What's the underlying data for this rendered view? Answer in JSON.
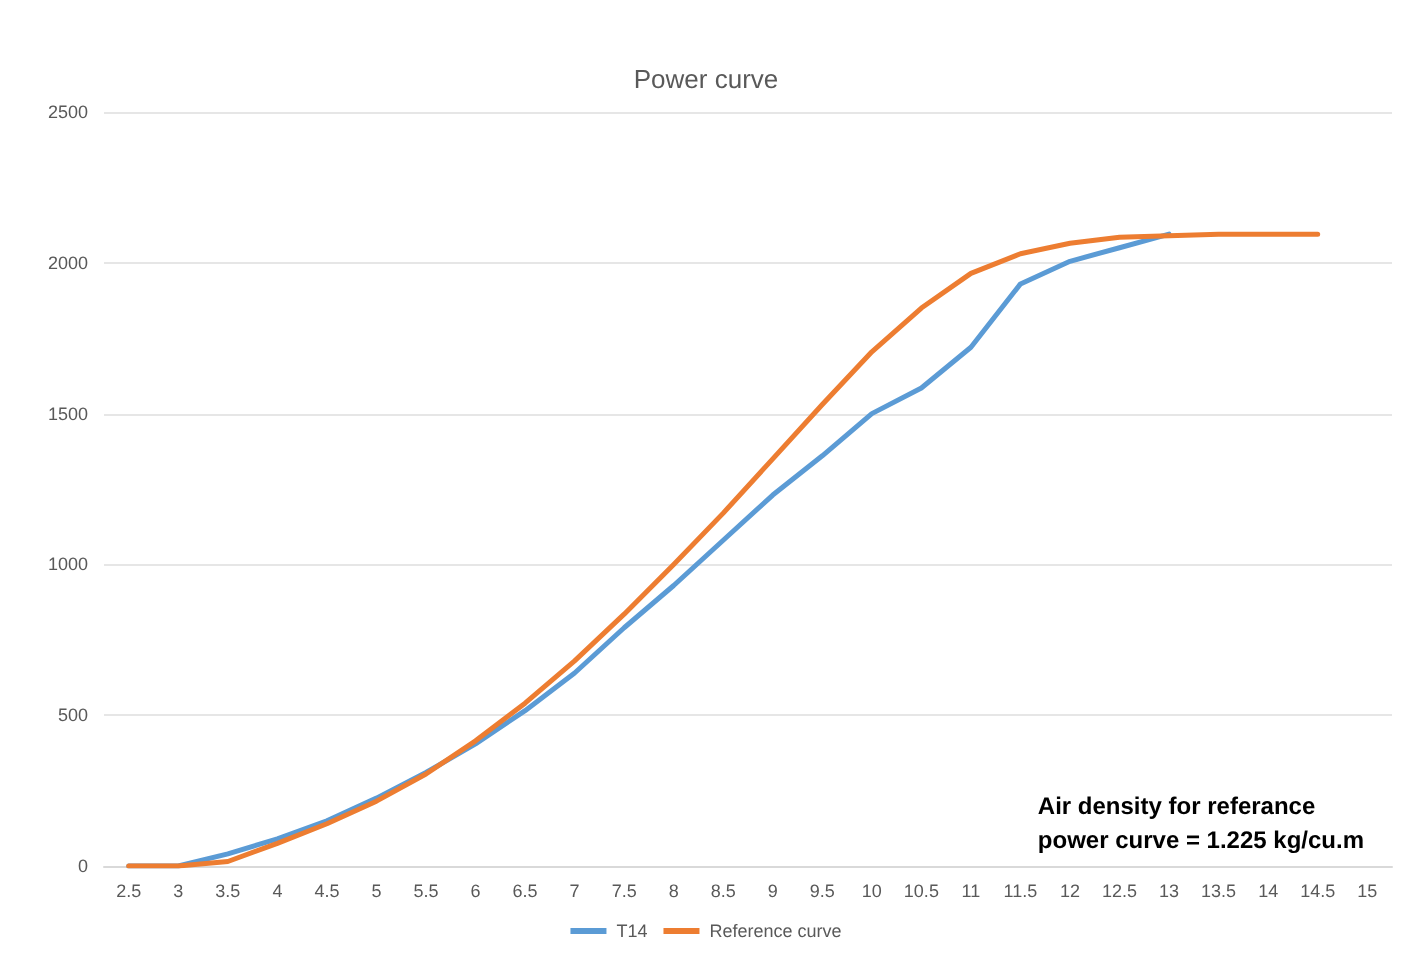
{
  "chart_data": {
    "type": "line",
    "title": "Power curve",
    "categories": [
      "2.5",
      "3",
      "3.5",
      "4",
      "4.5",
      "5",
      "5.5",
      "6",
      "6.5",
      "7",
      "7.5",
      "8",
      "8.5",
      "9",
      "9.5",
      "10",
      "10.5",
      "11",
      "11.5",
      "12",
      "12.5",
      "13",
      "13.5",
      "14",
      "14.5",
      "15"
    ],
    "series": [
      {
        "name": "T14",
        "color": "#5b9bd5",
        "values": [
          0,
          0,
          40,
          90,
          150,
          225,
          310,
          405,
          515,
          640,
          790,
          930,
          1080,
          1230,
          1360,
          1500,
          1585,
          1720,
          1930,
          2005,
          2050,
          2095,
          null,
          null,
          null,
          null
        ]
      },
      {
        "name": "Reference curve",
        "color": "#ed7d31",
        "values": [
          0,
          0,
          15,
          75,
          140,
          215,
          305,
          415,
          540,
          680,
          835,
          1000,
          1170,
          1350,
          1530,
          1705,
          1850,
          1965,
          2030,
          2065,
          2085,
          2090,
          2095,
          2095,
          2095,
          null
        ]
      }
    ],
    "ylim": [
      0,
      2500
    ],
    "yticks": [
      0,
      500,
      1000,
      1500,
      2000,
      2500
    ],
    "grid": "y",
    "legend": "bottom",
    "marker": "none",
    "line_style": "solid",
    "annotations": [
      "Air density for referance\npower curve = 1.225 kg/cu.m"
    ]
  }
}
